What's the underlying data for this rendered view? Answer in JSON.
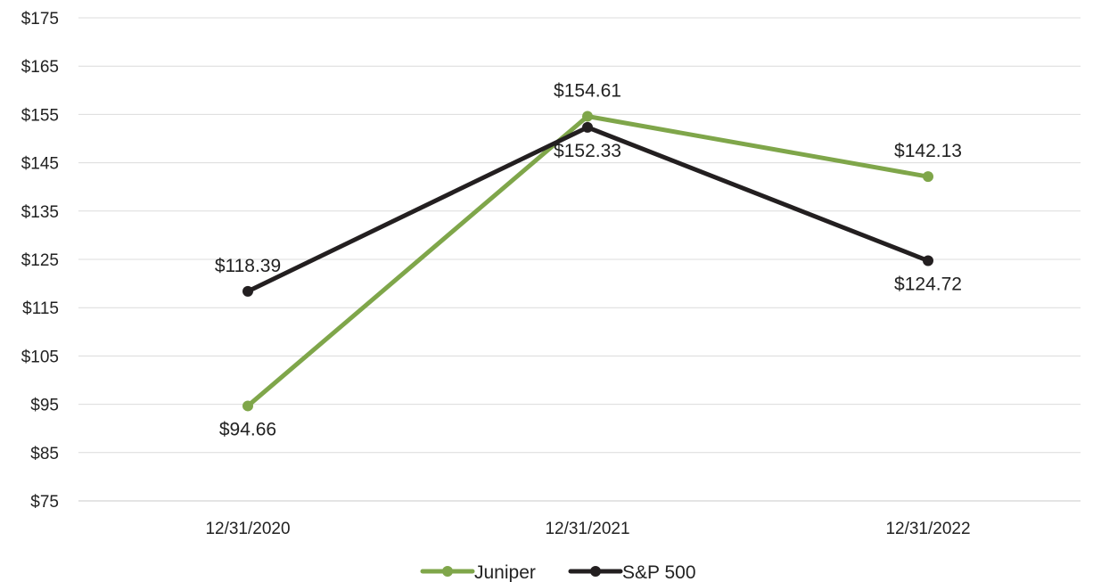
{
  "chart_data": {
    "type": "line",
    "categories": [
      "12/31/2020",
      "12/31/2021",
      "12/31/2022"
    ],
    "y_ticks": [
      "$75",
      "$85",
      "$95",
      "$105",
      "$115",
      "$125",
      "$135",
      "$145",
      "$155",
      "$165",
      "$175"
    ],
    "ylim": [
      75,
      175
    ],
    "grid": true,
    "legend_position": "bottom-center",
    "title": "",
    "xlabel": "",
    "ylabel": "",
    "series": [
      {
        "name": "Juniper",
        "color": "#7fa64a",
        "values": [
          94.66,
          154.61,
          142.13
        ],
        "labels": [
          "$94.66",
          "$154.61",
          "$142.13"
        ]
      },
      {
        "name": "S&P 500",
        "color": "#231f20",
        "values": [
          118.39,
          152.33,
          124.72
        ],
        "labels": [
          "$118.39",
          "$152.33",
          "$124.72"
        ]
      }
    ]
  }
}
